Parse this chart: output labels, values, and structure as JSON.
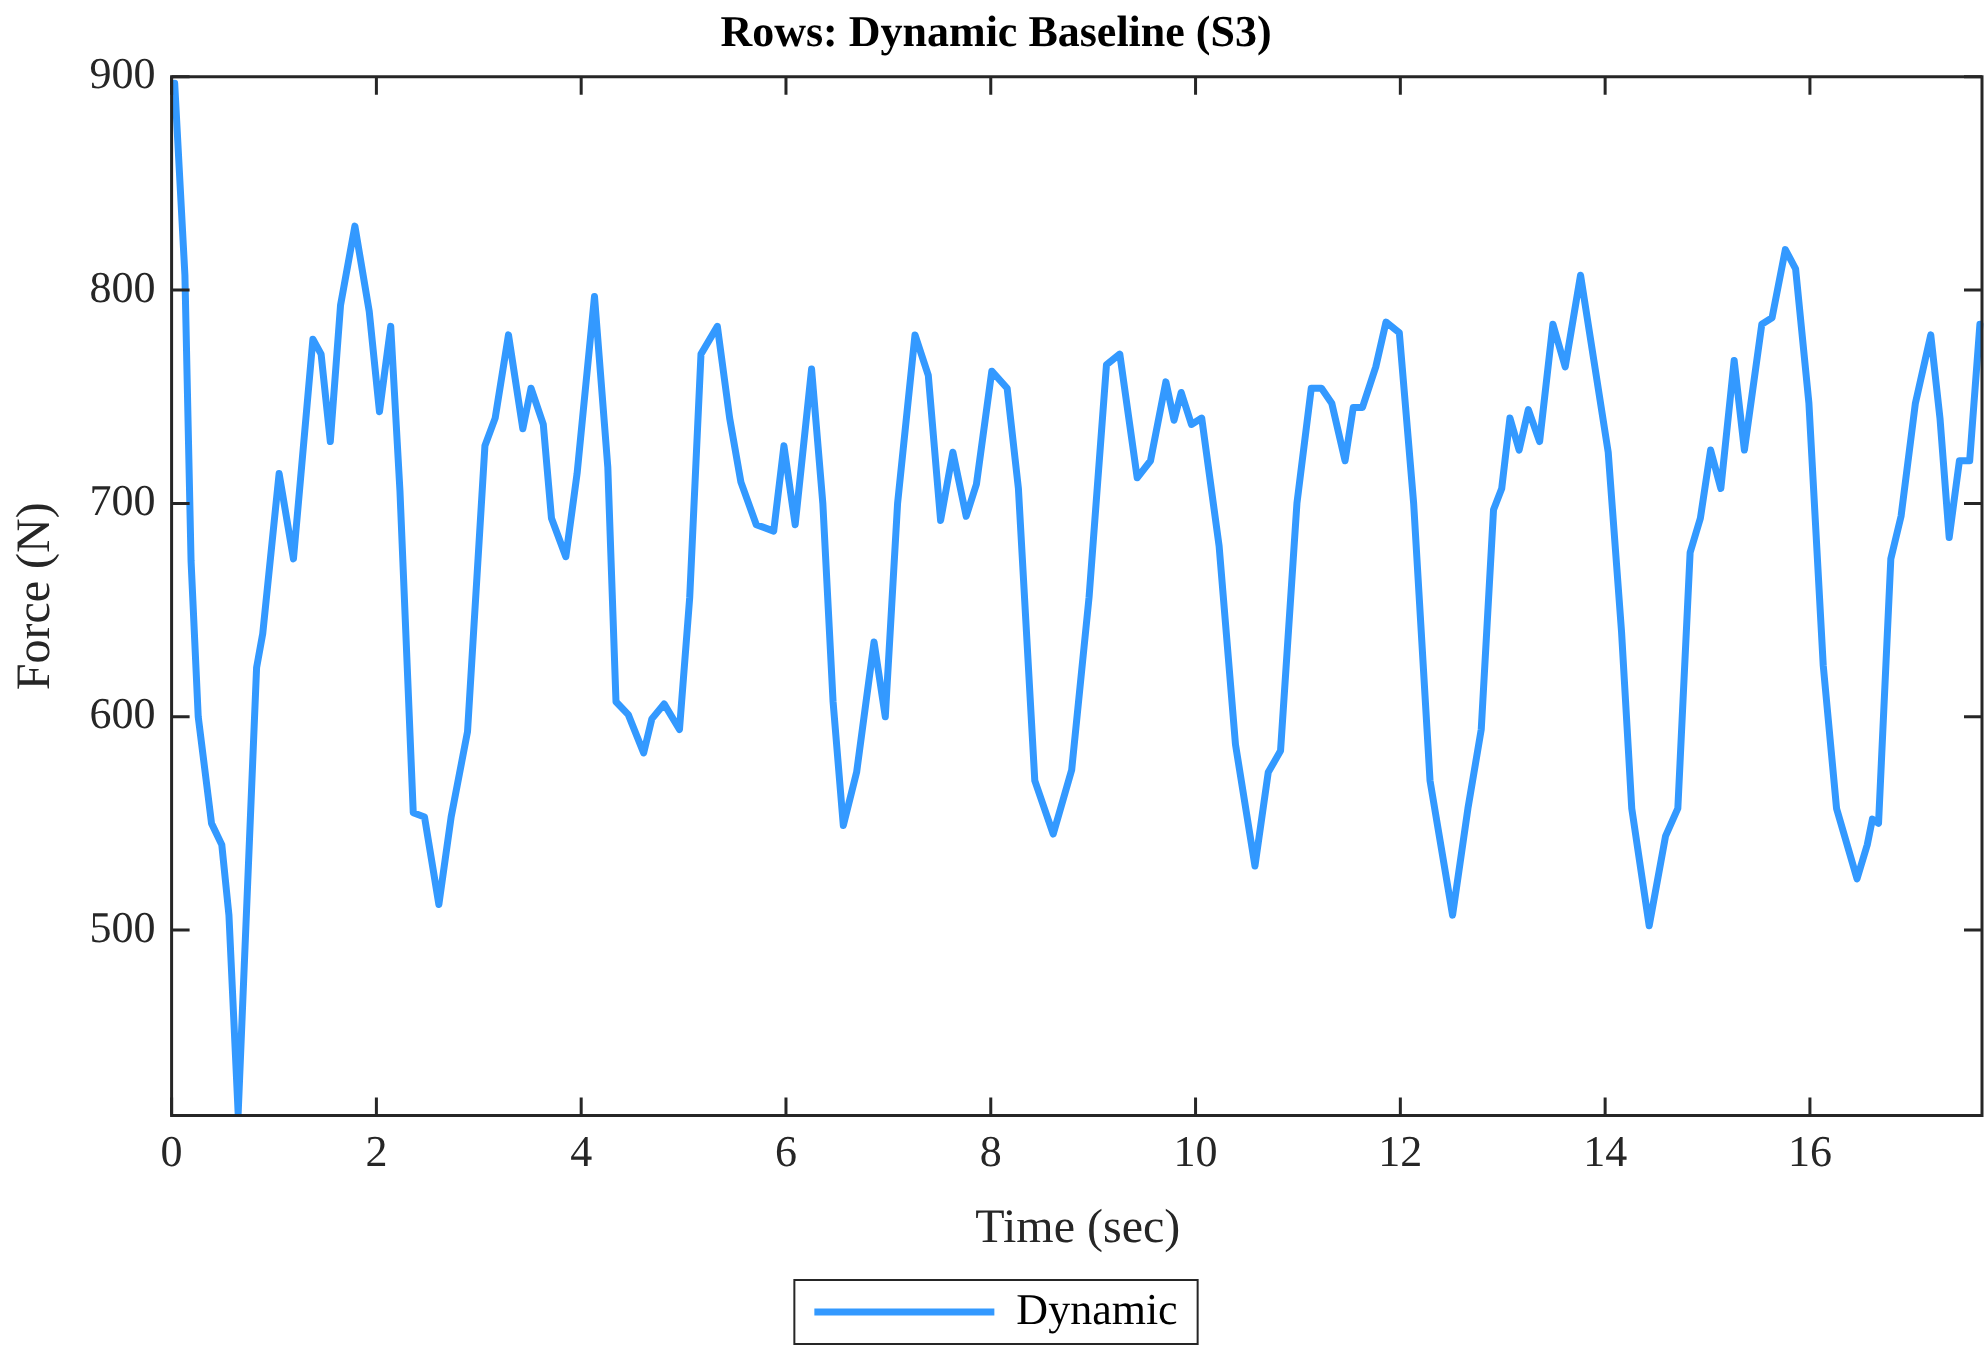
{
  "chart_data": {
    "type": "line",
    "title": "Rows: Dynamic Baseline (S3)",
    "xlabel": "Time (sec)",
    "ylabel": "Force (N)",
    "xlim": [
      0,
      17.7
    ],
    "ylim": [
      413,
      900
    ],
    "xticks": [
      0,
      2,
      4,
      6,
      8,
      10,
      12,
      14,
      16
    ],
    "yticks": [
      500,
      600,
      700,
      800,
      900
    ],
    "grid": false,
    "legend": "bottom",
    "marker": "none",
    "line_style": "solid",
    "series": [
      {
        "name": "Dynamic",
        "color": "#3399ff",
        "x": [
          0.03,
          0.13,
          0.19,
          0.26,
          0.39,
          0.49,
          0.56,
          0.65,
          0.73,
          0.83,
          0.89,
          1.05,
          1.19,
          1.38,
          1.46,
          1.55,
          1.65,
          1.79,
          1.93,
          2.03,
          2.14,
          2.23,
          2.36,
          2.47,
          2.61,
          2.73,
          2.89,
          3.06,
          3.16,
          3.29,
          3.43,
          3.51,
          3.63,
          3.71,
          3.85,
          3.96,
          4.13,
          4.26,
          4.34,
          4.46,
          4.61,
          4.69,
          4.81,
          4.96,
          5.06,
          5.17,
          5.33,
          5.45,
          5.56,
          5.71,
          5.88,
          5.98,
          6.09,
          6.25,
          6.36,
          6.46,
          6.56,
          6.69,
          6.86,
          6.97,
          7.09,
          7.26,
          7.39,
          7.51,
          7.63,
          7.76,
          7.86,
          8.01,
          8.16,
          8.27,
          8.43,
          8.61,
          8.79,
          8.96,
          9.13,
          9.26,
          9.43,
          9.56,
          9.71,
          9.79,
          9.86,
          9.96,
          10.06,
          10.23,
          10.39,
          10.58,
          10.71,
          10.83,
          10.99,
          11.13,
          11.23,
          11.33,
          11.46,
          11.54,
          11.63,
          11.76,
          11.86,
          11.99,
          12.13,
          12.29,
          12.51,
          12.66,
          12.79,
          12.91,
          12.99,
          13.07,
          13.16,
          13.25,
          13.36,
          13.49,
          13.61,
          13.76,
          13.89,
          14.03,
          14.16,
          14.26,
          14.43,
          14.59,
          14.71,
          14.83,
          14.93,
          15.03,
          15.13,
          15.26,
          15.36,
          15.53,
          15.63,
          15.76,
          15.86,
          15.99,
          16.13,
          16.26,
          16.46,
          16.56,
          16.61,
          16.67,
          16.79,
          16.89,
          17.03,
          17.18,
          17.27,
          17.36,
          17.46,
          17.56,
          17.66
        ],
        "values": [
          897,
          807,
          673,
          600,
          550,
          540,
          507,
          414,
          507,
          623,
          639,
          714,
          674,
          777,
          770,
          729,
          793,
          830,
          790,
          743,
          783,
          706,
          555,
          553,
          512,
          553,
          593,
          727,
          740,
          779,
          735,
          754,
          737,
          693,
          675,
          714,
          797,
          717,
          607,
          601,
          583,
          599,
          606,
          594,
          656,
          770,
          783,
          740,
          710,
          690,
          687,
          727,
          690,
          763,
          700,
          607,
          549,
          574,
          635,
          600,
          700,
          779,
          760,
          692,
          724,
          694,
          709,
          762,
          754,
          707,
          570,
          545,
          575,
          656,
          765,
          770,
          712,
          720,
          757,
          739,
          752,
          737,
          740,
          680,
          587,
          530,
          574,
          584,
          700,
          754,
          754,
          747,
          720,
          745,
          745,
          764,
          785,
          780,
          700,
          570,
          507,
          557,
          594,
          697,
          707,
          740,
          725,
          744,
          729,
          784,
          764,
          807,
          767,
          724,
          640,
          557,
          502,
          544,
          557,
          677,
          693,
          725,
          707,
          767,
          725,
          784,
          787,
          819,
          810,
          747,
          624,
          557,
          524,
          540,
          552,
          550,
          674,
          694,
          747,
          779,
          740,
          684,
          720,
          720,
          784
        ]
      }
    ]
  }
}
